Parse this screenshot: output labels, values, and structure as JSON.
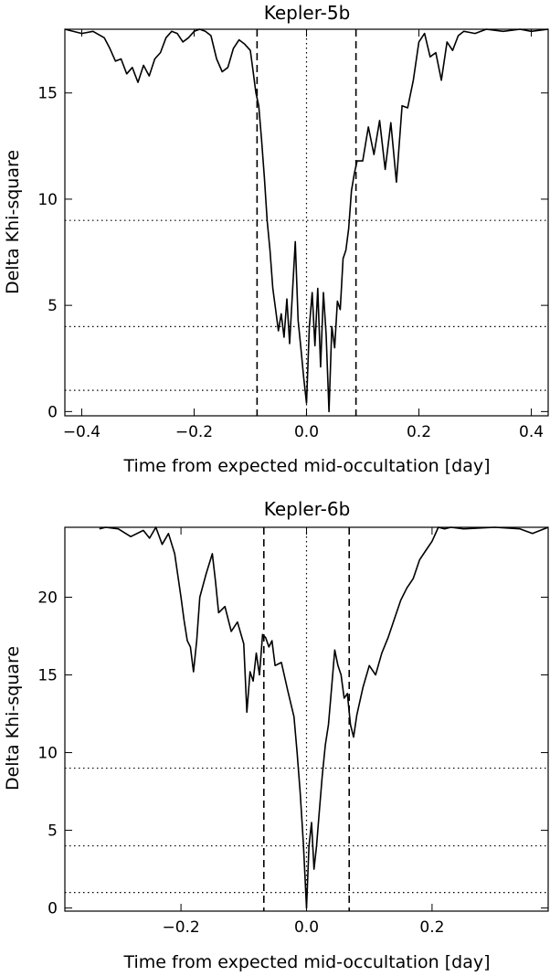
{
  "chart_data": [
    {
      "type": "line",
      "title": "Kepler-5b",
      "xlabel": "Time from expected mid-occultation [day]",
      "ylabel": "Delta Khi-square",
      "xlim": [
        -0.43,
        0.43
      ],
      "ylim": [
        -0.2,
        18.0
      ],
      "xticks": [
        -0.4,
        -0.2,
        0.0,
        0.2,
        0.4
      ],
      "xtick_labels": [
        "-0.4",
        "-0.2",
        "0.0",
        "0.2",
        "0.4"
      ],
      "yticks": [
        0,
        5,
        10,
        15
      ],
      "ytick_labels": [
        "0",
        "5",
        "10",
        "15"
      ],
      "hlines_dotted": [
        1,
        4,
        9
      ],
      "vlines_dotted": [
        0.0
      ],
      "vlines_dashed": [
        -0.088,
        0.088
      ],
      "grid": false,
      "series": [
        {
          "x": [
            -0.43,
            -0.4,
            -0.38,
            -0.36,
            -0.35,
            -0.34,
            -0.33,
            -0.32,
            -0.31,
            -0.3,
            -0.29,
            -0.28,
            -0.27,
            -0.26,
            -0.25,
            -0.24,
            -0.23,
            -0.22,
            -0.21,
            -0.2,
            -0.19,
            -0.18,
            -0.17,
            -0.16,
            -0.15,
            -0.14,
            -0.13,
            -0.12,
            -0.11,
            -0.1,
            -0.095,
            -0.09,
            -0.085,
            -0.08,
            -0.075,
            -0.07,
            -0.065,
            -0.06,
            -0.055,
            -0.05,
            -0.045,
            -0.04,
            -0.035,
            -0.03,
            -0.025,
            -0.02,
            -0.015,
            -0.01,
            -0.005,
            0.0,
            0.005,
            0.01,
            0.015,
            0.02,
            0.025,
            0.03,
            0.035,
            0.04,
            0.045,
            0.05,
            0.055,
            0.06,
            0.065,
            0.07,
            0.075,
            0.08,
            0.085,
            0.09,
            0.1,
            0.11,
            0.12,
            0.13,
            0.14,
            0.15,
            0.16,
            0.17,
            0.18,
            0.19,
            0.2,
            0.21,
            0.22,
            0.23,
            0.24,
            0.25,
            0.26,
            0.27,
            0.28,
            0.3,
            0.32,
            0.35,
            0.38,
            0.4,
            0.43
          ],
          "y": [
            18.0,
            17.8,
            17.9,
            17.6,
            17.1,
            16.5,
            16.6,
            15.9,
            16.2,
            15.5,
            16.3,
            15.8,
            16.6,
            16.9,
            17.6,
            17.9,
            17.8,
            17.4,
            17.6,
            17.9,
            18.0,
            17.9,
            17.7,
            16.6,
            16.0,
            16.2,
            17.1,
            17.5,
            17.3,
            17.0,
            16.0,
            15.0,
            14.4,
            12.8,
            11.0,
            9.0,
            7.6,
            5.8,
            4.8,
            3.8,
            4.6,
            3.5,
            5.3,
            3.2,
            5.6,
            8.0,
            4.3,
            3.0,
            1.6,
            0.4,
            4.0,
            5.6,
            3.1,
            5.8,
            2.1,
            5.6,
            3.6,
            0.0,
            4.0,
            3.0,
            5.2,
            4.8,
            7.2,
            7.6,
            8.6,
            10.4,
            11.2,
            11.8,
            11.8,
            13.4,
            12.1,
            13.7,
            11.4,
            13.6,
            10.8,
            14.4,
            14.3,
            15.6,
            17.4,
            17.8,
            16.7,
            16.9,
            15.6,
            17.4,
            17.0,
            17.7,
            17.9,
            17.8,
            18.0,
            17.9,
            18.0,
            17.9,
            18.0
          ]
        }
      ]
    },
    {
      "type": "line",
      "title": "Kepler-6b",
      "xlabel": "Time from expected mid-occultation [day]",
      "ylabel": "Delta Khi-square",
      "xlim": [
        -0.385,
        0.385
      ],
      "ylim": [
        -0.2,
        24.5
      ],
      "xticks": [
        -0.2,
        0.0,
        0.2
      ],
      "xtick_labels": [
        "-0.2",
        "0.0",
        "0.2"
      ],
      "yticks": [
        0,
        5,
        10,
        15,
        20
      ],
      "ytick_labels": [
        "0",
        "5",
        "10",
        "15",
        "20"
      ],
      "hlines_dotted": [
        1,
        4,
        9
      ],
      "vlines_dotted": [
        0.0
      ],
      "vlines_dashed": [
        -0.068,
        0.068
      ],
      "grid": false,
      "series": [
        {
          "x": [
            -0.33,
            -0.32,
            -0.3,
            -0.28,
            -0.26,
            -0.25,
            -0.24,
            -0.23,
            -0.22,
            -0.21,
            -0.2,
            -0.195,
            -0.19,
            -0.185,
            -0.18,
            -0.175,
            -0.17,
            -0.16,
            -0.15,
            -0.145,
            -0.14,
            -0.13,
            -0.12,
            -0.11,
            -0.1,
            -0.095,
            -0.09,
            -0.085,
            -0.08,
            -0.075,
            -0.07,
            -0.065,
            -0.06,
            -0.055,
            -0.05,
            -0.04,
            -0.03,
            -0.02,
            -0.015,
            -0.01,
            -0.005,
            0.0,
            0.004,
            0.008,
            0.012,
            0.016,
            0.02,
            0.025,
            0.03,
            0.035,
            0.04,
            0.045,
            0.05,
            0.055,
            0.06,
            0.065,
            0.07,
            0.075,
            0.08,
            0.09,
            0.1,
            0.11,
            0.12,
            0.13,
            0.14,
            0.15,
            0.16,
            0.17,
            0.18,
            0.19,
            0.2,
            0.21,
            0.22,
            0.23,
            0.25,
            0.3,
            0.34,
            0.36,
            0.385
          ],
          "y": [
            24.4,
            24.5,
            24.4,
            23.9,
            24.3,
            23.8,
            24.5,
            23.4,
            24.1,
            22.8,
            20.0,
            18.5,
            17.2,
            16.8,
            15.2,
            17.2,
            20.0,
            21.5,
            22.8,
            21.0,
            19.0,
            19.4,
            17.8,
            18.4,
            17.0,
            12.6,
            15.2,
            14.6,
            16.4,
            15.0,
            17.6,
            17.4,
            16.8,
            17.2,
            15.6,
            15.8,
            14.0,
            12.3,
            10.0,
            7.4,
            4.1,
            0.0,
            4.0,
            5.5,
            2.5,
            4.0,
            6.0,
            8.5,
            10.5,
            11.8,
            14.2,
            16.6,
            15.6,
            15.0,
            13.5,
            13.8,
            11.8,
            11.0,
            12.4,
            14.2,
            15.6,
            15.0,
            16.4,
            17.4,
            18.6,
            19.8,
            20.6,
            21.2,
            22.4,
            23.0,
            23.6,
            24.5,
            24.4,
            24.5,
            24.4,
            24.5,
            24.4,
            24.1,
            24.5
          ]
        }
      ]
    }
  ]
}
